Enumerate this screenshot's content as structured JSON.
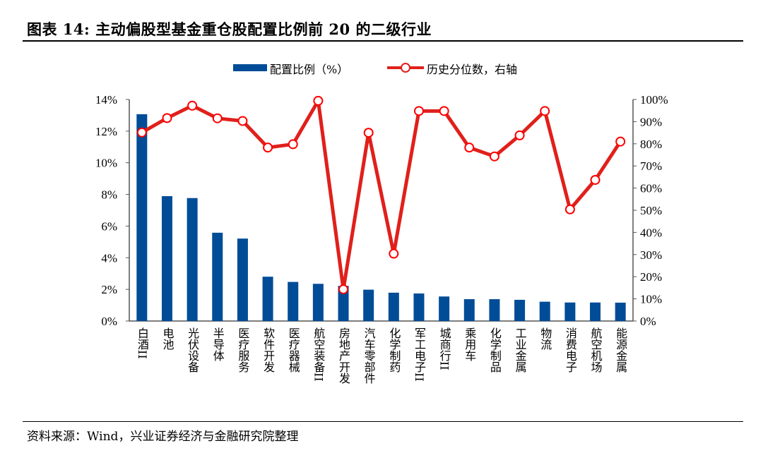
{
  "title": "图表 14: 主动偏股型基金重仓股配置比例前 20 的二级行业",
  "source": "资料来源：Wind，兴业证券经济与金融研究院整理",
  "chart_data": {
    "type": "bar+line",
    "categories": [
      "白酒II",
      "电池",
      "光伏设备",
      "半导体",
      "医疗服务",
      "软件开发",
      "医疗器械",
      "航空装备II",
      "房地产开发",
      "汽车零部件",
      "化学制药",
      "军工电子II",
      "城商行II",
      "乘用车",
      "化学制品",
      "工业金属",
      "物流",
      "消费电子",
      "航空机场",
      "能源金属"
    ],
    "series": [
      {
        "name": "配置比例（%）",
        "type": "bar",
        "axis": "left",
        "color": "#004C97",
        "values": [
          13.07,
          7.89,
          7.77,
          5.58,
          5.21,
          2.8,
          2.47,
          2.35,
          2.22,
          1.98,
          1.79,
          1.74,
          1.55,
          1.38,
          1.38,
          1.34,
          1.22,
          1.17,
          1.17,
          1.16
        ]
      },
      {
        "name": "历史分位数，右轴",
        "type": "line",
        "axis": "right",
        "color": "#E0201B",
        "values": [
          85.1,
          91.6,
          97.2,
          91.5,
          90.3,
          78.3,
          79.8,
          99.4,
          14.3,
          85.0,
          30.4,
          94.8,
          94.8,
          78.3,
          74.3,
          83.8,
          94.8,
          50.4,
          63.7,
          81.0
        ]
      }
    ],
    "left_axis": {
      "range": [
        0,
        14
      ],
      "ticks": [
        "0%",
        "2%",
        "4%",
        "6%",
        "8%",
        "10%",
        "12%",
        "14%"
      ]
    },
    "right_axis": {
      "range": [
        0,
        100
      ],
      "ticks": [
        "0%",
        "10%",
        "20%",
        "30%",
        "40%",
        "50%",
        "60%",
        "70%",
        "80%",
        "90%",
        "100%"
      ]
    },
    "grid": false,
    "legend_position": "top"
  }
}
